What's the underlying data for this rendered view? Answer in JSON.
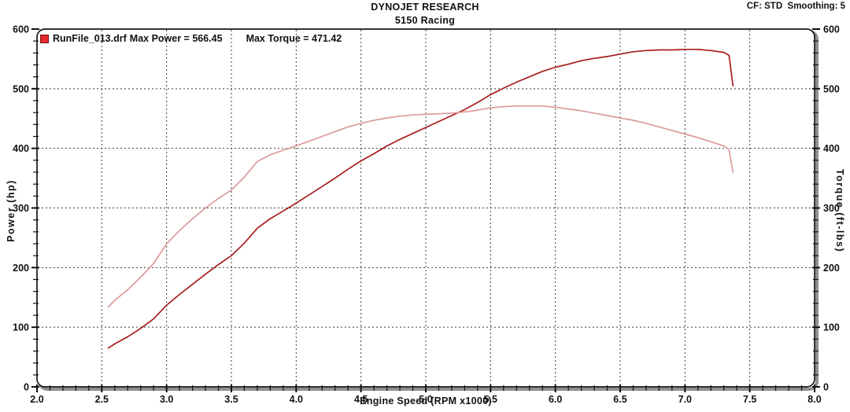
{
  "header": {
    "brand": "DYNOJET RESEARCH",
    "subtitle": "5150 Racing",
    "settings": "CF: STD  Smoothing: 5"
  },
  "legend": {
    "marker_icon": "run-series-square-marker",
    "run_file": "RunFile_013.drf",
    "max_power_text": "Max Power = 566.45",
    "max_torque_text": "Max Torque = 471.42"
  },
  "colors": {
    "power_curve": "#a81d1d",
    "torque_curve": "#dd9b9b",
    "legend_marker_fill": "#e12b2b",
    "legend_marker_border": "#7a1010",
    "grid": "#3c3c3c",
    "frame": "#161616",
    "frame_shadow": "#8f8f8f",
    "tick": "#111111",
    "background": "#ffffff"
  },
  "chart_data": {
    "type": "line",
    "title": "DYNOJET RESEARCH - 5150 Racing",
    "xlabel": "Engine Speed (RPM x1000)",
    "ylabel_left": "Power (hp)",
    "ylabel_right": "Torque (ft-lbs)",
    "xlim": [
      2.0,
      8.0
    ],
    "ylim": [
      0,
      600
    ],
    "x_tick_labels": [
      "2.0",
      "2.5",
      "3.0",
      "3.5",
      "4.0",
      "4.5",
      "5.0",
      "5.5",
      "6.0",
      "6.5",
      "7.0",
      "7.5",
      "8.0"
    ],
    "y_tick_labels": [
      "0",
      "100",
      "200",
      "300",
      "400",
      "500",
      "600"
    ],
    "x_minor_step": 0.1,
    "y_minor_step": 20,
    "grid": "dashed lines at major ticks only",
    "legend_position": "top-left inside plot",
    "max_power": 566.45,
    "max_torque": 471.42,
    "x_rpm_x1000": [
      2.55,
      2.6,
      2.7,
      2.8,
      2.9,
      3.0,
      3.1,
      3.2,
      3.3,
      3.4,
      3.5,
      3.6,
      3.7,
      3.8,
      3.9,
      4.0,
      4.1,
      4.2,
      4.3,
      4.4,
      4.5,
      4.6,
      4.7,
      4.8,
      4.9,
      5.0,
      5.1,
      5.2,
      5.3,
      5.4,
      5.5,
      5.6,
      5.7,
      5.8,
      5.9,
      6.0,
      6.1,
      6.2,
      6.3,
      6.4,
      6.5,
      6.6,
      6.7,
      6.8,
      6.9,
      7.0,
      7.1,
      7.2,
      7.3,
      7.34,
      7.37
    ],
    "series": [
      {
        "name": "Power",
        "unit": "hp",
        "axis": "left",
        "color": "#a81d1d",
        "values": [
          65,
          72,
          84,
          98,
          114,
          137,
          155,
          172,
          189,
          205,
          220,
          241,
          266,
          282,
          295,
          308,
          322,
          336,
          350,
          365,
          379,
          391,
          404,
          415,
          425,
          435,
          445,
          455,
          465,
          477,
          490,
          501,
          511,
          520,
          529,
          536,
          541,
          547,
          551,
          554,
          558,
          562,
          564,
          565,
          565,
          566,
          566,
          564,
          561,
          556,
          505
        ]
      },
      {
        "name": "Torque",
        "unit": "ft-lbs",
        "axis": "right",
        "color": "#dd9b9b",
        "values": [
          134,
          145,
          163,
          184,
          207,
          240,
          262,
          282,
          300,
          316,
          330,
          352,
          378,
          389,
          397,
          404,
          412,
          420,
          428,
          436,
          442,
          447,
          451,
          454,
          456,
          457,
          458,
          459,
          461,
          464,
          468,
          470,
          471,
          471,
          471,
          469,
          466,
          463,
          459,
          455,
          451,
          447,
          442,
          436,
          430,
          424,
          418,
          411,
          404,
          398,
          360
        ]
      }
    ]
  }
}
